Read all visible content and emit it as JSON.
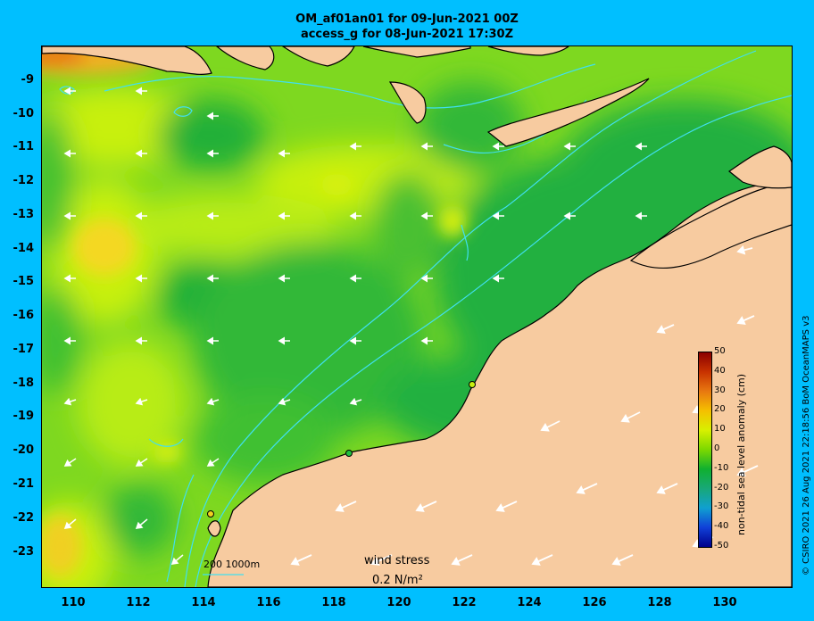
{
  "title": {
    "line1": "OM_af01an01 for 09-Jun-2021 00Z",
    "line2": "access_g for 08-Jun-2021 17:30Z"
  },
  "credit": "© CSIRO 2021  26 Aug 2021 22:18:56 BoM OceanMAPS v3",
  "axes": {
    "lon_ticks": [
      "110",
      "112",
      "114",
      "116",
      "118",
      "120",
      "122",
      "124",
      "126",
      "128",
      "130"
    ],
    "lat_ticks": [
      "-9",
      "-10",
      "-11",
      "-12",
      "-13",
      "-14",
      "-15",
      "-16",
      "-17",
      "-18",
      "-19",
      "-20",
      "-21",
      "-22",
      "-23"
    ],
    "lon_range": [
      109,
      132
    ],
    "lat_range": [
      -24,
      -8
    ]
  },
  "colorbar": {
    "label": "non-tidal sea level anomaly (cm)",
    "ticks": [
      "50",
      "40",
      "30",
      "20",
      "10",
      "0",
      "-10",
      "-20",
      "-30",
      "-40",
      "-50"
    ],
    "range_cm": [
      -50,
      50
    ]
  },
  "legend": {
    "wind_title": "wind stress",
    "wind_value": "0.2 N/m²",
    "isobath_label": "200  1000m"
  },
  "colors": {
    "background": "#00bfff",
    "land": "#f7cba0",
    "isobath": "#40e0f0",
    "ocean_mid": "#80dd20",
    "ocean_low": "#20b838",
    "ocean_high": "#f0e020"
  },
  "stations": [
    {
      "lon": 114.2,
      "lat": -21.8
    },
    {
      "lon": 118.4,
      "lat": -20.05
    },
    {
      "lon": 122.2,
      "lat": -18.05
    }
  ]
}
